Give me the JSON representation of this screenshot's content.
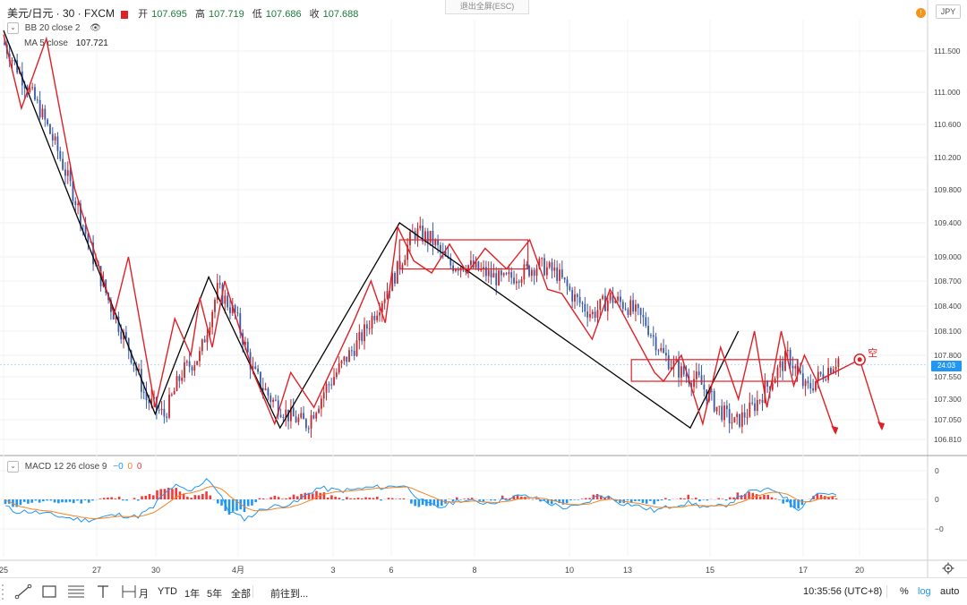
{
  "header": {
    "symbol": "美元/日元 · 30 · FXCM",
    "open_label": "开",
    "open": "107.695",
    "high_label": "高",
    "high": "107.719",
    "low_label": "低",
    "low": "107.686",
    "close_label": "收",
    "close": "107.688",
    "bb_label": "BB 20 close 2",
    "ma_label": "MA 5 close",
    "ma_value": "107.721",
    "macd_label": "MACD 12 26 close 9",
    "macd_v1": "−0",
    "macd_v2": "0",
    "macd_v3": "0"
  },
  "exit_fullscreen": "退出全屏(ESC)",
  "currency": "JPY",
  "alert_icon": "alert-icon",
  "price_axis": {
    "labels": [
      "111.500",
      "111.000",
      "110.600",
      "110.200",
      "109.800",
      "109.400",
      "109.000",
      "108.700",
      "108.400",
      "108.100",
      "107.800",
      "107.550",
      "107.300",
      "107.050",
      "106.810"
    ],
    "last_price_tag": "24:03",
    "last_price_tag_value": "107.688"
  },
  "macd_axis": {
    "labels": [
      "0",
      "0",
      "−0"
    ]
  },
  "time_axis": {
    "labels": [
      "25",
      "27",
      "30",
      "4月",
      "3",
      "6",
      "8",
      "10",
      "13",
      "15",
      "17",
      "20"
    ]
  },
  "annotation": {
    "short_label": "空"
  },
  "toolbar": {
    "periods": [
      "月",
      "YTD",
      "1年",
      "5年",
      "全部"
    ],
    "goto": "前往到...",
    "time": "10:35:56 (UTC+8)",
    "percent": "%",
    "log": "log",
    "auto": "auto"
  },
  "colors": {
    "up": "#c2272d",
    "down": "#3b5ba5",
    "zigzag_black": "#000000",
    "zigzag_red": "#e01f26",
    "macd_pos": "#ef3b3b",
    "macd_neg": "#2196f3",
    "macd_line": "#2196f3",
    "signal_line": "#f5821f",
    "last_price": "#2196f3"
  },
  "chart_data": {
    "type": "line",
    "title": "美元/日元 · 30 · FXCM",
    "xlabel": "",
    "ylabel": "",
    "ylim": [
      106.7,
      111.9
    ],
    "x_ticks": [
      "25",
      "27",
      "30",
      "4月",
      "3",
      "6",
      "8",
      "10",
      "13",
      "15",
      "17",
      "20"
    ],
    "series": [
      {
        "kind": "price",
        "x": [
          0,
          1,
          2,
          3,
          4,
          5,
          6,
          7,
          8,
          9,
          10,
          11,
          12,
          13,
          14,
          15,
          16,
          17,
          18,
          19,
          20,
          21,
          22,
          23,
          24,
          25,
          26,
          27,
          28,
          29,
          30,
          31,
          32,
          33,
          34,
          35,
          36,
          37,
          38,
          39,
          40,
          41,
          42,
          43,
          44,
          45,
          46,
          47,
          48,
          49,
          50
        ],
        "values": [
          111.6,
          111.2,
          110.8,
          110.3,
          109.7,
          109.0,
          108.4,
          107.9,
          107.3,
          107.1,
          107.6,
          107.8,
          108.6,
          108.3,
          107.6,
          107.3,
          107.1,
          107.0,
          107.4,
          107.7,
          108.0,
          108.4,
          108.8,
          109.3,
          109.2,
          108.9,
          108.9,
          108.8,
          108.7,
          108.8,
          108.9,
          108.8,
          108.5,
          108.3,
          108.5,
          108.4,
          108.2,
          107.8,
          107.6,
          107.5,
          107.2,
          107.0,
          107.2,
          107.5,
          107.8,
          107.4,
          107.6,
          107.8,
          107.6,
          107.7,
          107.69
        ]
      },
      {
        "kind": "zigzag-black",
        "points": [
          [
            0,
            111.75
          ],
          [
            8.5,
            107.12
          ],
          [
            11.5,
            108.75
          ],
          [
            15.5,
            106.95
          ],
          [
            22.2,
            109.4
          ],
          [
            38.5,
            106.95
          ],
          [
            41.2,
            108.1
          ]
        ]
      },
      {
        "kind": "zigzag-red",
        "points": [
          [
            0,
            111.7
          ],
          [
            1,
            110.8
          ],
          [
            2.4,
            111.65
          ],
          [
            4,
            109.8
          ],
          [
            6.2,
            108.3
          ],
          [
            7,
            109.0
          ],
          [
            8.5,
            107.2
          ],
          [
            9.6,
            108.25
          ],
          [
            10.5,
            107.8
          ],
          [
            11,
            108.5
          ],
          [
            11.7,
            107.9
          ],
          [
            12.4,
            108.7
          ],
          [
            14,
            107.6
          ],
          [
            15.2,
            107.0
          ],
          [
            16.1,
            107.6
          ],
          [
            17.4,
            107.2
          ],
          [
            19.6,
            108.2
          ],
          [
            20.6,
            108.7
          ],
          [
            21.4,
            108.2
          ],
          [
            22.1,
            109.35
          ],
          [
            23,
            108.95
          ],
          [
            24,
            108.8
          ],
          [
            25,
            109.15
          ],
          [
            26,
            108.8
          ],
          [
            27,
            109.1
          ],
          [
            28.2,
            108.85
          ],
          [
            29.5,
            109.2
          ],
          [
            30.5,
            108.6
          ],
          [
            31.3,
            108.55
          ],
          [
            33,
            108.0
          ],
          [
            34,
            108.6
          ],
          [
            35,
            108.2
          ],
          [
            36.5,
            107.6
          ],
          [
            37,
            107.5
          ],
          [
            38,
            107.8
          ],
          [
            39.2,
            107.0
          ],
          [
            40.2,
            107.9
          ],
          [
            41.2,
            107.3
          ],
          [
            42.1,
            108.1
          ],
          [
            42.8,
            107.2
          ],
          [
            43.6,
            108.1
          ],
          [
            44.3,
            107.45
          ],
          [
            44.9,
            107.8
          ],
          [
            45.6,
            107.5
          ],
          [
            46.6,
            106.9
          ]
        ]
      }
    ],
    "boxes": [
      {
        "label": "range-1",
        "x": [
          22.2,
          29.4
        ],
        "y": [
          108.85,
          109.2
        ]
      },
      {
        "label": "range-2",
        "x": [
          35.2,
          44.5
        ],
        "y": [
          107.5,
          107.75
        ]
      }
    ],
    "macd": {
      "lines": [
        "macd",
        "signal"
      ],
      "hist_sign_pattern": "alternating"
    },
    "grid": true,
    "legend": "top-left"
  }
}
